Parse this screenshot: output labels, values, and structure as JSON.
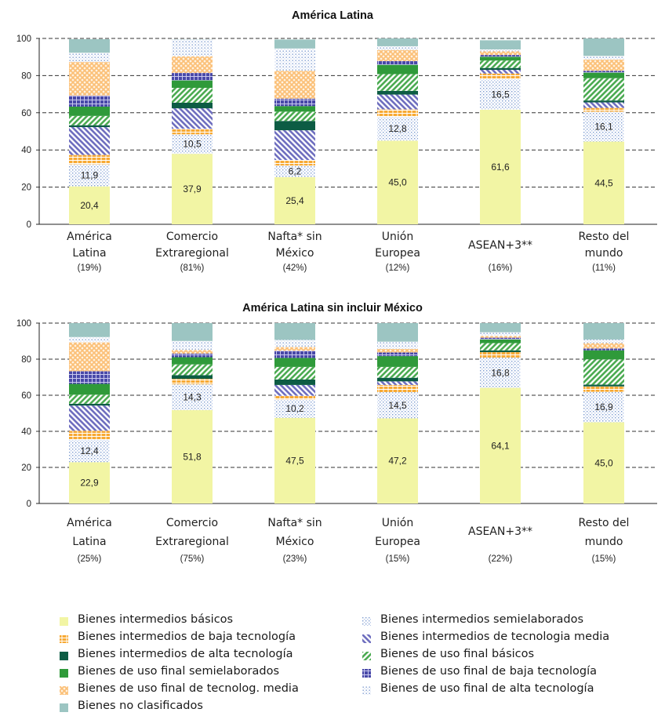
{
  "chart_data": [
    {
      "type": "bar",
      "stacked": true,
      "title": "América Latina",
      "ylim": [
        0,
        100
      ],
      "yticks": [
        0,
        20,
        40,
        60,
        80,
        100
      ],
      "grid": "dashed horizontal",
      "categories": [
        {
          "lines": [
            "América",
            "Latina"
          ],
          "share": "(19%)"
        },
        {
          "lines": [
            "Comercio",
            "Extraregional"
          ],
          "share": "(81%)"
        },
        {
          "lines": [
            "Nafta* sin",
            "México"
          ],
          "share": "(42%)"
        },
        {
          "lines": [
            "Unión",
            "Europea"
          ],
          "share": "(12%)"
        },
        {
          "lines": [
            "ASEAN+3**"
          ],
          "share": "(16%)"
        },
        {
          "lines": [
            "Resto del",
            "mundo"
          ],
          "share": "(11%)"
        }
      ],
      "series": [
        {
          "key": "s1",
          "values": [
            20.4,
            37.9,
            25.4,
            45.0,
            61.6,
            44.5
          ],
          "labels": [
            "20,4",
            "37,9",
            "25,4",
            "45,0",
            "61,6",
            "44,5"
          ]
        },
        {
          "key": "s2",
          "values": [
            11.9,
            10.5,
            6.2,
            12.8,
            16.5,
            16.1
          ],
          "labels": [
            "11,9",
            "10,5",
            "6,2",
            "12,8",
            "16,5",
            "16,1"
          ]
        },
        {
          "key": "s3",
          "values": [
            5,
            3,
            3,
            4,
            3,
            2
          ],
          "labels": []
        },
        {
          "key": "s4",
          "values": [
            15,
            11,
            16,
            8,
            2,
            3
          ],
          "labels": []
        },
        {
          "key": "s5",
          "values": [
            1,
            3,
            5,
            2,
            1,
            1
          ],
          "labels": []
        },
        {
          "key": "s6",
          "values": [
            5,
            8,
            5,
            9,
            4,
            12
          ],
          "labels": []
        },
        {
          "key": "s7",
          "values": [
            5,
            4,
            3,
            5,
            2,
            3
          ],
          "labels": []
        },
        {
          "key": "s8",
          "values": [
            6,
            4,
            4,
            2,
            1,
            1
          ],
          "labels": []
        },
        {
          "key": "s9",
          "values": [
            18,
            9,
            15,
            6,
            2,
            6
          ],
          "labels": []
        },
        {
          "key": "s10",
          "values": [
            5,
            9,
            12,
            2,
            1,
            2
          ],
          "labels": []
        },
        {
          "key": "s11",
          "values": [
            7.3,
            0.1,
            4.8,
            4.2,
            4.9,
            9.4
          ],
          "labels": []
        }
      ]
    },
    {
      "type": "bar",
      "stacked": true,
      "title": "América Latina sin incluir México",
      "ylim": [
        0,
        100
      ],
      "yticks": [
        0,
        20,
        40,
        60,
        80,
        100
      ],
      "grid": "dashed horizontal",
      "categories": [
        {
          "lines": [
            "América",
            "Latina"
          ],
          "share": "(25%)"
        },
        {
          "lines": [
            "Comercio",
            "Extraregional"
          ],
          "share": "(75%)"
        },
        {
          "lines": [
            "Nafta* sin",
            "México"
          ],
          "share": "(23%)"
        },
        {
          "lines": [
            "Unión",
            "Europea"
          ],
          "share": "(15%)"
        },
        {
          "lines": [
            "ASEAN+3**"
          ],
          "share": "(22%)"
        },
        {
          "lines": [
            "Resto del",
            "mundo"
          ],
          "share": "(15%)"
        }
      ],
      "series": [
        {
          "key": "s1",
          "values": [
            22.9,
            51.8,
            47.5,
            47.2,
            64.1,
            45.0
          ],
          "labels": [
            "22,9",
            "51,8",
            "47,5",
            "47,2",
            "64,1",
            "45,0"
          ]
        },
        {
          "key": "s2",
          "values": [
            12.4,
            14.3,
            10.2,
            14.5,
            16.8,
            16.9
          ],
          "labels": [
            "12,4",
            "14,3",
            "10,2",
            "14,5",
            "16,8",
            "16,9"
          ]
        },
        {
          "key": "s3",
          "values": [
            5,
            3,
            2,
            4,
            3,
            3
          ],
          "labels": []
        },
        {
          "key": "s4",
          "values": [
            14,
            0,
            6,
            2,
            0,
            0
          ],
          "labels": []
        },
        {
          "key": "s5",
          "values": [
            1,
            2,
            3,
            2,
            1,
            1
          ],
          "labels": []
        },
        {
          "key": "s6",
          "values": [
            5,
            6,
            7,
            6,
            4,
            14
          ],
          "labels": []
        },
        {
          "key": "s7",
          "values": [
            6,
            4,
            5,
            6,
            2,
            5
          ],
          "labels": []
        },
        {
          "key": "s8",
          "values": [
            7,
            2,
            4,
            2,
            1,
            1
          ],
          "labels": []
        },
        {
          "key": "s9",
          "values": [
            16,
            2,
            2,
            2,
            1,
            3
          ],
          "labels": []
        },
        {
          "key": "s10",
          "values": [
            3,
            5,
            4,
            4,
            2,
            2
          ],
          "labels": []
        },
        {
          "key": "s11",
          "values": [
            7.7,
            9.9,
            9.3,
            10.3,
            5.1,
            9.1
          ],
          "labels": []
        }
      ]
    }
  ],
  "legend": [
    {
      "key": "s1",
      "label": "Bienes intermedios básicos"
    },
    {
      "key": "s2",
      "label": "Bienes intermedios semielaborados"
    },
    {
      "key": "s3",
      "label": "Bienes intermedios de baja tecnología"
    },
    {
      "key": "s4",
      "label": "Bienes intermedios de tecnologia media"
    },
    {
      "key": "s5",
      "label": "Bienes intermedios de alta tecnología"
    },
    {
      "key": "s6",
      "label": "Bienes de uso final básicos"
    },
    {
      "key": "s7",
      "label": "Bienes de uso final semielaborados"
    },
    {
      "key": "s8",
      "label": "Bienes de uso final de baja tecnología"
    },
    {
      "key": "s9",
      "label": "Bienes de uso final de tecnolog. media"
    },
    {
      "key": "s10",
      "label": "Bienes de uso final de alta tecnología"
    },
    {
      "key": "s11",
      "label": "Bienes no clasificados"
    }
  ],
  "colors": {
    "s1": "#f2f5a4",
    "s2": "#dde8f5",
    "s3": "#f7a933",
    "s4": "#6f6fbf",
    "s5": "#0d5c44",
    "s6": "#4cab52",
    "s7": "#2f9a3a",
    "s8": "#4848a8",
    "s9": "#fbc078",
    "s10": "#d6e0f2",
    "s11": "#9cc5c2"
  }
}
